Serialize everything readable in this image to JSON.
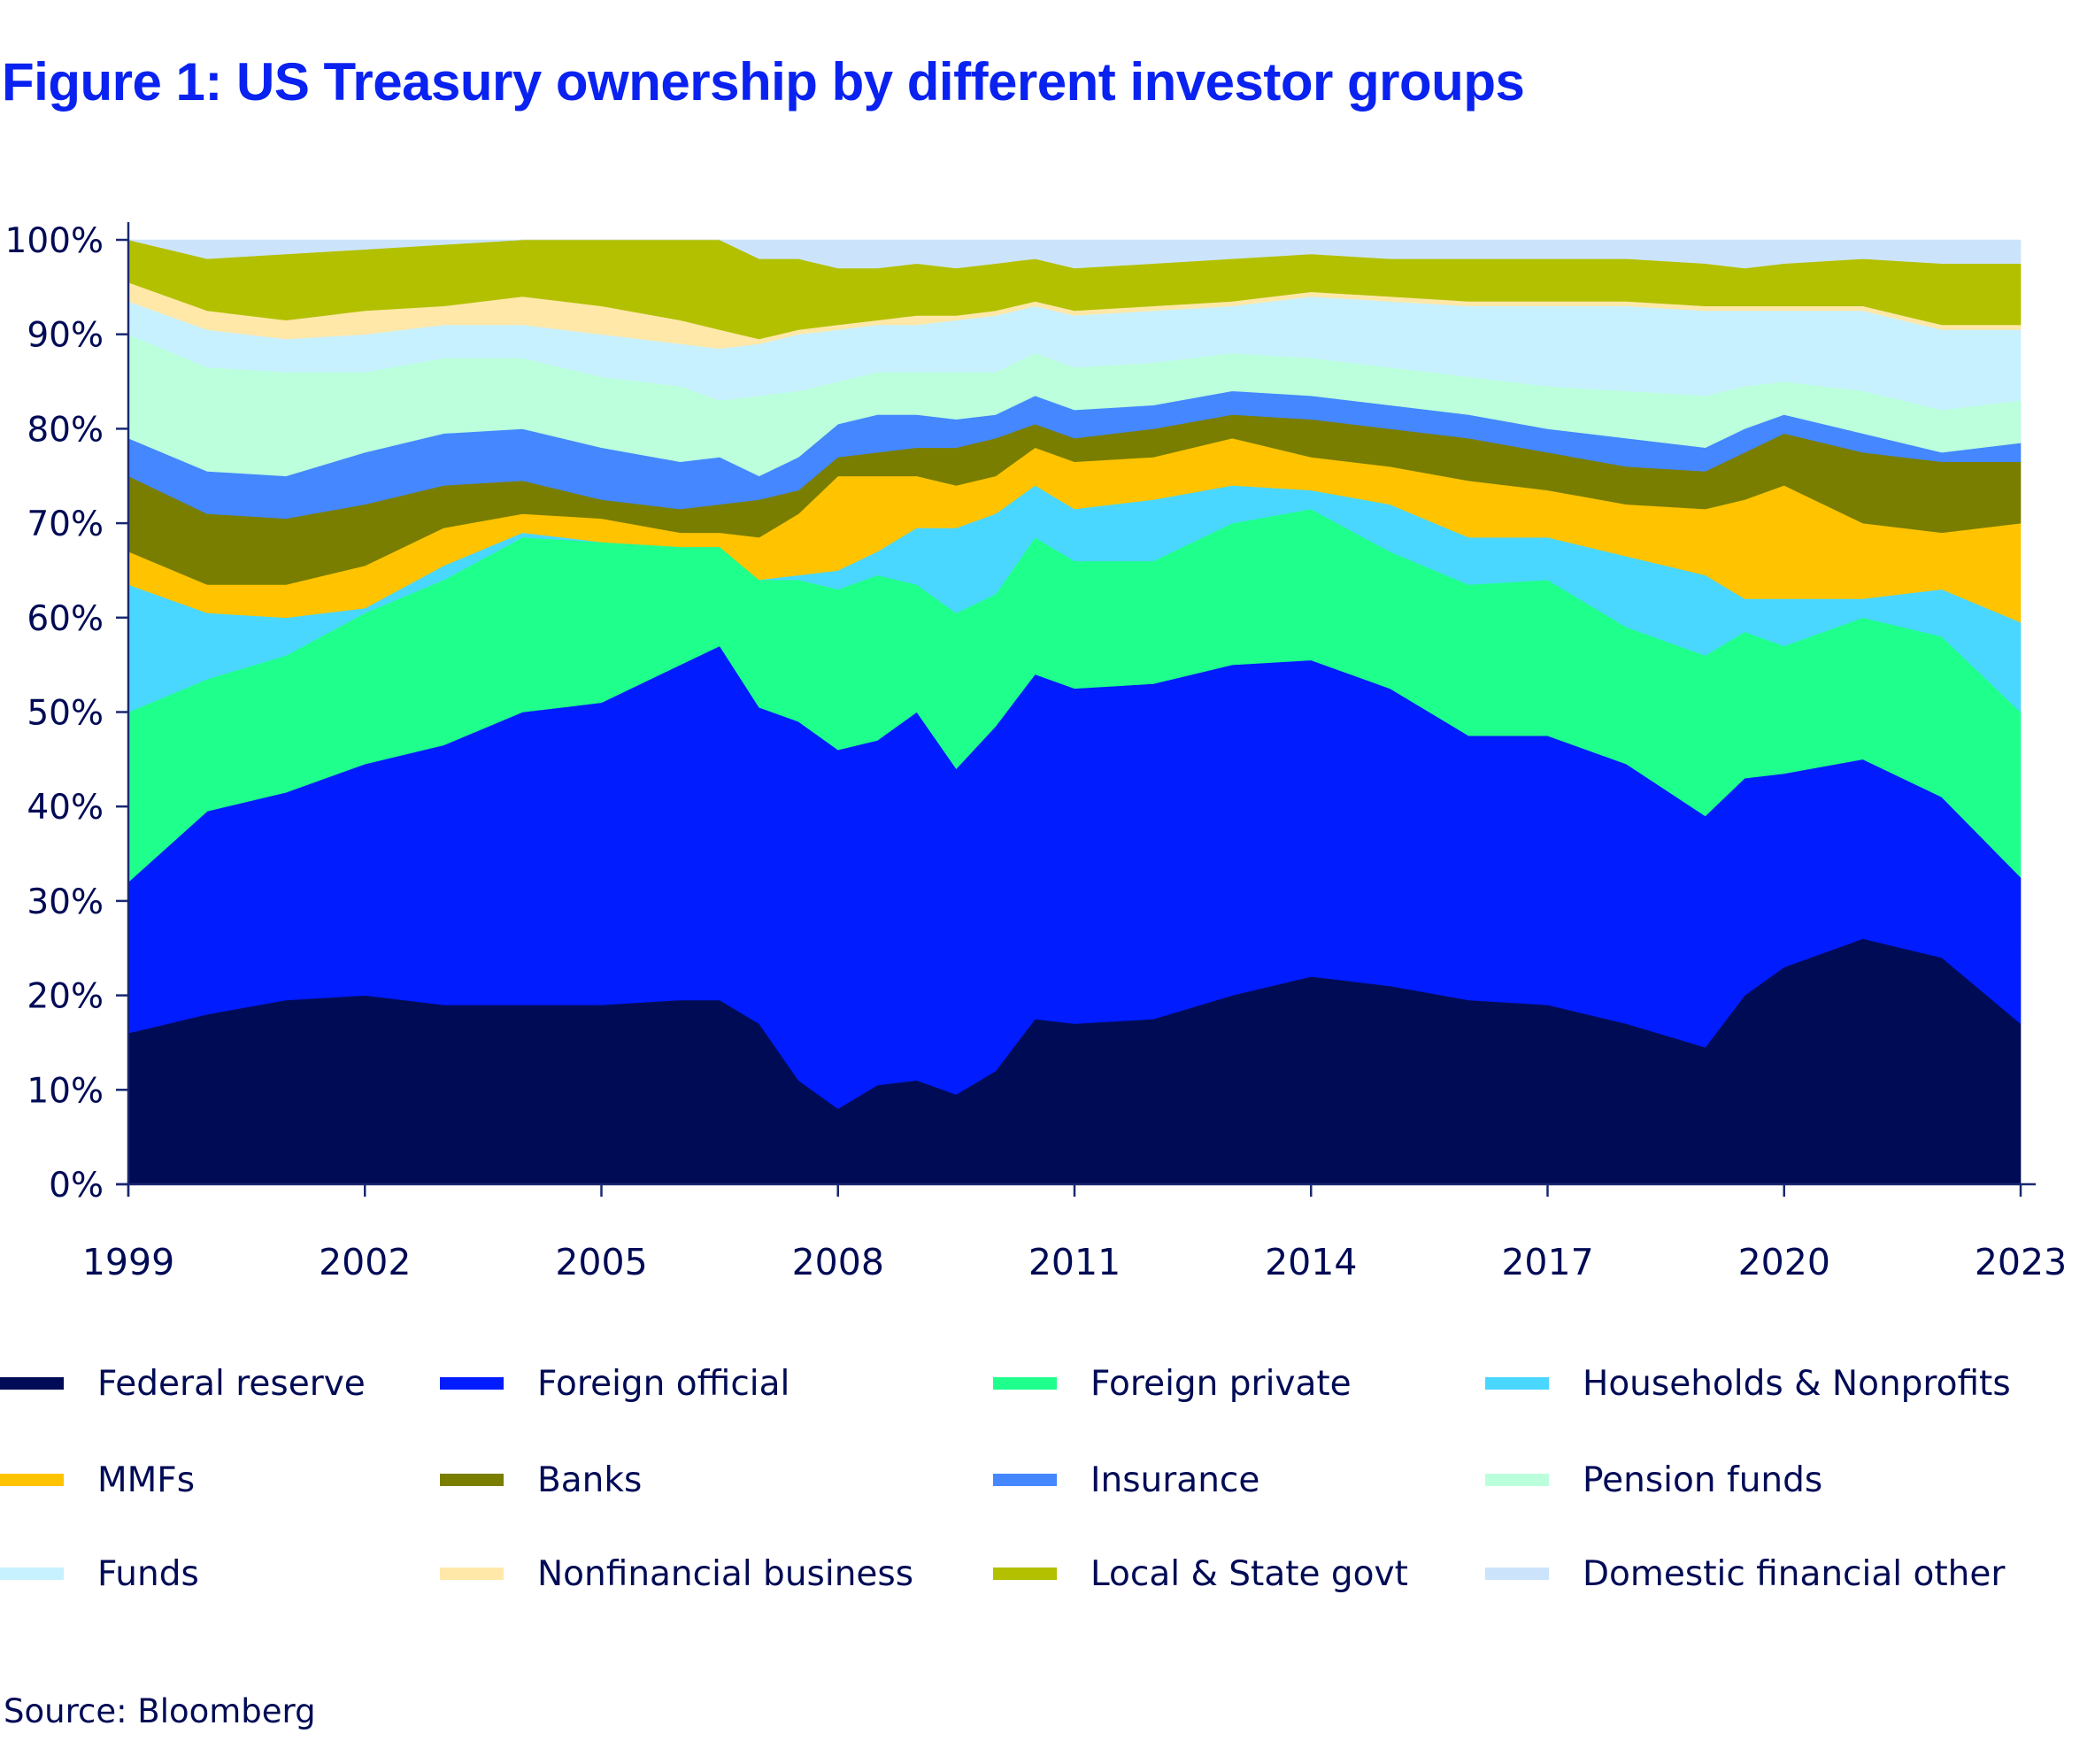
{
  "title": "Figure 1: US Treasury ownership by different investor groups",
  "source": "Source: Bloomberg",
  "chart_data": {
    "type": "area",
    "stacked": true,
    "normalized": true,
    "title": "Figure 1: US Treasury ownership by different investor groups",
    "xlabel": "",
    "ylabel": "",
    "ylim": [
      0,
      100
    ],
    "xlim": [
      1999,
      2023
    ],
    "grid": false,
    "legend_position": "bottom",
    "y_ticks": [
      "0%",
      "10%",
      "20%",
      "30%",
      "40%",
      "50%",
      "60%",
      "70%",
      "80%",
      "90%",
      "100%"
    ],
    "x_ticks": [
      "1999",
      "2002",
      "2005",
      "2008",
      "2011",
      "2014",
      "2017",
      "2020",
      "2023"
    ],
    "x": [
      1999.0,
      2000.0,
      2001.0,
      2002.0,
      2003.0,
      2004.0,
      2005.0,
      2006.0,
      2006.5,
      2007.0,
      2007.5,
      2008.0,
      2008.5,
      2009.0,
      2009.5,
      2010.0,
      2010.5,
      2011.0,
      2012.0,
      2013.0,
      2014.0,
      2015.0,
      2016.0,
      2017.0,
      2018.0,
      2019.0,
      2019.5,
      2020.0,
      2021.0,
      2022.0,
      2023.0
    ],
    "series": [
      {
        "name": "Federal reserve",
        "color": "#000b55",
        "values": [
          16,
          18,
          19.5,
          20,
          19,
          19,
          19,
          19.5,
          19.5,
          17,
          11,
          8,
          10.5,
          11,
          9.5,
          12,
          17.5,
          17,
          17.5,
          20,
          22,
          21,
          19.5,
          19,
          17,
          14.5,
          20,
          23,
          26,
          24,
          17
        ]
      },
      {
        "name": "Foreign official",
        "color": "#001cff",
        "values": [
          16,
          21.5,
          22,
          24.5,
          27.5,
          31,
          32,
          35.5,
          37.5,
          33.5,
          38,
          38,
          36.5,
          39,
          34.5,
          36.5,
          36.5,
          35.5,
          35.5,
          35,
          33.5,
          31.5,
          28,
          28.5,
          27.5,
          24.5,
          23,
          20.5,
          19,
          17,
          15.5
        ]
      },
      {
        "name": "Foreign private",
        "color": "#1fff8c",
        "values": [
          18,
          14,
          14.5,
          16,
          17.5,
          18.5,
          17,
          12.5,
          10.5,
          13.5,
          15,
          17,
          17.5,
          13.5,
          16.5,
          14,
          14.5,
          13.5,
          13,
          15,
          16,
          14.5,
          16,
          16.5,
          14.5,
          17,
          15.5,
          13.5,
          15,
          17,
          17.5
        ]
      },
      {
        "name": "Households & Nonprofits",
        "color": "#4ad7ff",
        "values": [
          13.5,
          7,
          4,
          0.5,
          1.5,
          0.5,
          0,
          0,
          0,
          0,
          0.5,
          2,
          2.5,
          6,
          9,
          8.5,
          5.5,
          5.5,
          6.5,
          4,
          2,
          5,
          5,
          4.5,
          7.5,
          8.5,
          3.5,
          5,
          2,
          5,
          9.5
        ]
      },
      {
        "name": "MMFs",
        "color": "#ffc300",
        "values": [
          3.5,
          3,
          3.5,
          4.5,
          4,
          2,
          2.5,
          1.5,
          1.5,
          4.5,
          6.5,
          10,
          8,
          5.5,
          4.5,
          4,
          4,
          5,
          4.5,
          5,
          3.5,
          4,
          6,
          5,
          5.5,
          7,
          10.5,
          12,
          8,
          6,
          10.5
        ]
      },
      {
        "name": "Banks",
        "color": "#797e00",
        "values": [
          8,
          7.5,
          7,
          6.5,
          4.5,
          3.5,
          2,
          2.5,
          3,
          4,
          2.5,
          2,
          2.5,
          3,
          4,
          4,
          2.5,
          2.5,
          3,
          2.5,
          4,
          4,
          4.5,
          4,
          4,
          4,
          5,
          5.5,
          7.5,
          7.5,
          6.5
        ]
      },
      {
        "name": "Insurance",
        "color": "#4487ff",
        "values": [
          4,
          4.5,
          4.5,
          5.5,
          5.5,
          5.5,
          5.5,
          5,
          5,
          2.5,
          3.5,
          3.5,
          4,
          3.5,
          3,
          2.5,
          3,
          3,
          2.5,
          2.5,
          2.5,
          2.5,
          2.5,
          2.5,
          3,
          2.5,
          2.5,
          2,
          2,
          1,
          2
        ]
      },
      {
        "name": "Pension funds",
        "color": "#bbffdc",
        "values": [
          11,
          11,
          11,
          8.5,
          8,
          7.5,
          7.5,
          8,
          6,
          8.5,
          7,
          4.5,
          4.5,
          4.5,
          5,
          4.5,
          4.5,
          4.5,
          4.5,
          4,
          4,
          4,
          4,
          4.5,
          5,
          5.5,
          4.5,
          3.5,
          4.5,
          4.5,
          4.5
        ]
      },
      {
        "name": "Funds",
        "color": "#c8f1ff",
        "values": [
          3.5,
          4,
          3.5,
          4,
          3.5,
          3.5,
          4.5,
          4.5,
          5.5,
          5.5,
          6,
          5.5,
          5,
          5,
          5.5,
          6,
          5,
          5.5,
          5.5,
          5,
          6.5,
          7,
          7.5,
          8.5,
          9,
          9,
          8,
          7.5,
          8.5,
          8.5,
          7.5
        ]
      },
      {
        "name": "Nonfinancial business",
        "color": "#ffe8a8",
        "values": [
          2,
          2,
          2,
          2.5,
          2,
          3,
          3,
          2.5,
          2,
          0.5,
          0.5,
          0.5,
          0.5,
          1,
          0.5,
          0.5,
          0.5,
          0.5,
          0.5,
          0.5,
          0.5,
          0.5,
          0.5,
          0.5,
          0.5,
          0.5,
          0.5,
          0.5,
          0.5,
          0.5,
          0.5
        ]
      },
      {
        "name": "Local & State govt",
        "color": "#b2c000",
        "values": [
          4.5,
          5.5,
          7,
          6.5,
          6.5,
          6,
          7,
          8.5,
          9.5,
          8.5,
          7.5,
          6,
          5.5,
          5.5,
          5,
          5,
          4.5,
          4.5,
          4.5,
          4.5,
          4,
          4,
          4.5,
          4.5,
          4.5,
          4.5,
          4,
          4.5,
          5,
          6.5,
          6.5
        ]
      },
      {
        "name": "Domestic financial other",
        "color": "#cce4fb",
        "values": [
          0,
          2,
          1.5,
          1,
          0.5,
          0,
          0,
          0,
          0,
          2,
          2,
          3,
          3,
          2.5,
          3,
          2.5,
          2,
          3,
          2.5,
          2,
          1.5,
          2,
          2,
          2,
          2,
          2.5,
          3,
          2.5,
          2,
          2.5,
          2.5
        ]
      }
    ]
  }
}
